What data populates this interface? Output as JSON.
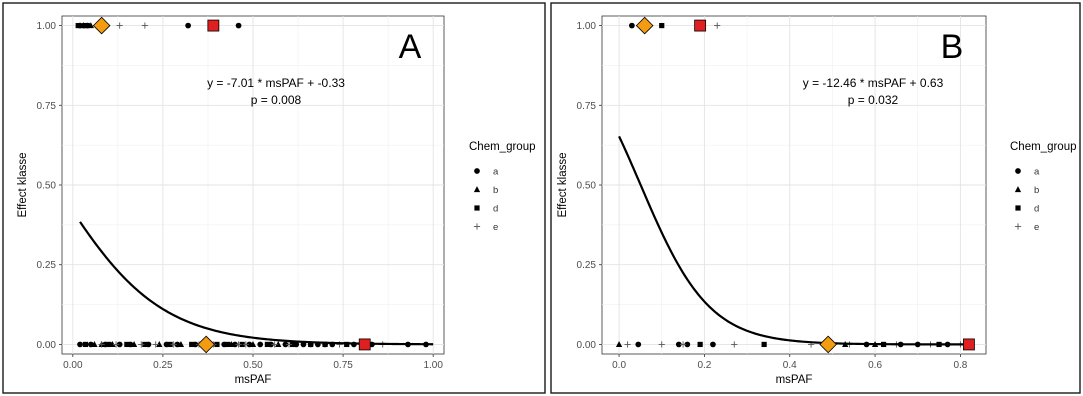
{
  "chart_data": [
    {
      "type": "scatter",
      "panel_label": "A",
      "xlabel": "msPAF",
      "ylabel": "Effect klasse",
      "xlim": [
        -0.03,
        1.03
      ],
      "ylim": [
        -0.03,
        1.03
      ],
      "x_ticks": [
        0.0,
        0.25,
        0.5,
        0.75,
        1.0
      ],
      "x_tick_labels": [
        "0.00",
        "0.25",
        "0.50",
        "0.75",
        "1.00"
      ],
      "y_ticks": [
        0.0,
        0.25,
        0.5,
        0.75,
        1.0
      ],
      "y_tick_labels": [
        "0.00",
        "0.25",
        "0.50",
        "0.75",
        "1.00"
      ],
      "grid": true,
      "equation": "y = -7.01 * msPAF + -0.33",
      "p_value": "p = 0.008",
      "legend": {
        "title": "Chem_group",
        "placement": "right",
        "entries": [
          {
            "label": "a",
            "shape": "circle"
          },
          {
            "label": "b",
            "shape": "triangle"
          },
          {
            "label": "d",
            "shape": "square"
          },
          {
            "label": "e",
            "shape": "plus"
          }
        ]
      },
      "fit_curve": {
        "type": "logistic",
        "intercept": -0.33,
        "slope": -7.01,
        "x_range": [
          0.02,
          1.0
        ]
      },
      "series": [
        {
          "name": "a",
          "shape": "circle",
          "points": [
            [
              0.02,
              1
            ],
            [
              0.03,
              1
            ],
            [
              0.04,
              1
            ],
            [
              0.32,
              1
            ],
            [
              0.46,
              1
            ],
            [
              0.02,
              0
            ],
            [
              0.05,
              0
            ],
            [
              0.09,
              0
            ],
            [
              0.13,
              0
            ],
            [
              0.16,
              0
            ],
            [
              0.21,
              0
            ],
            [
              0.26,
              0
            ],
            [
              0.29,
              0
            ],
            [
              0.34,
              0
            ],
            [
              0.42,
              0
            ],
            [
              0.45,
              0
            ],
            [
              0.49,
              0
            ],
            [
              0.52,
              0
            ],
            [
              0.55,
              0
            ],
            [
              0.59,
              0
            ],
            [
              0.62,
              0
            ],
            [
              0.64,
              0
            ],
            [
              0.66,
              0
            ],
            [
              0.68,
              0
            ],
            [
              0.7,
              0
            ],
            [
              0.72,
              0
            ],
            [
              0.78,
              0
            ],
            [
              0.83,
              0
            ],
            [
              0.93,
              0
            ],
            [
              0.98,
              0
            ]
          ]
        },
        {
          "name": "b",
          "shape": "triangle",
          "points": [
            [
              0.03,
              1
            ],
            [
              0.05,
              1
            ],
            [
              0.06,
              0
            ],
            [
              0.08,
              0
            ],
            [
              0.11,
              0
            ],
            [
              0.17,
              0
            ],
            [
              0.24,
              0
            ],
            [
              0.3,
              0
            ],
            [
              0.37,
              0
            ],
            [
              0.44,
              0
            ],
            [
              0.5,
              0
            ],
            [
              0.57,
              0
            ]
          ]
        },
        {
          "name": "d",
          "shape": "square",
          "points": [
            [
              0.015,
              1
            ],
            [
              0.04,
              1
            ],
            [
              0.035,
              0
            ],
            [
              0.1,
              0
            ],
            [
              0.15,
              0
            ],
            [
              0.2,
              0
            ],
            [
              0.27,
              0
            ],
            [
              0.33,
              0
            ],
            [
              0.4,
              0
            ],
            [
              0.43,
              0
            ],
            [
              0.47,
              0
            ],
            [
              0.54,
              0
            ],
            [
              0.61,
              0
            ],
            [
              0.66,
              0
            ],
            [
              0.7,
              0
            ],
            [
              0.76,
              0
            ]
          ]
        },
        {
          "name": "e",
          "shape": "plus",
          "points": [
            [
              0.13,
              1
            ],
            [
              0.2,
              1
            ],
            [
              0.08,
              0
            ],
            [
              0.12,
              0
            ],
            [
              0.19,
              0
            ],
            [
              0.23,
              0
            ],
            [
              0.28,
              0
            ],
            [
              0.35,
              0
            ],
            [
              0.39,
              0
            ],
            [
              0.46,
              0
            ],
            [
              0.48,
              0
            ],
            [
              0.56,
              0
            ],
            [
              0.6,
              0
            ],
            [
              0.74,
              0
            ],
            [
              0.8,
              0
            ],
            [
              0.86,
              0
            ]
          ]
        }
      ],
      "mean_markers": [
        {
          "shape": "diamond",
          "color": "#F39C12",
          "x": 0.08,
          "y": 1
        },
        {
          "shape": "square",
          "color": "#E02020",
          "x": 0.39,
          "y": 1
        },
        {
          "shape": "diamond",
          "color": "#F39C12",
          "x": 0.37,
          "y": 0
        },
        {
          "shape": "square",
          "color": "#E02020",
          "x": 0.81,
          "y": 0
        }
      ]
    },
    {
      "type": "scatter",
      "panel_label": "B",
      "xlabel": "msPAF",
      "ylabel": "Effect klasse",
      "xlim": [
        -0.04,
        0.86
      ],
      "ylim": [
        -0.03,
        1.03
      ],
      "x_ticks": [
        0.0,
        0.2,
        0.4,
        0.6,
        0.8
      ],
      "x_tick_labels": [
        "0.0",
        "0.2",
        "0.4",
        "0.6",
        "0.8"
      ],
      "y_ticks": [
        0.0,
        0.25,
        0.5,
        0.75,
        1.0
      ],
      "y_tick_labels": [
        "0.00",
        "0.25",
        "0.50",
        "0.75",
        "1.00"
      ],
      "grid": true,
      "equation": "y = -12.46 * msPAF + 0.63",
      "p_value": "p = 0.032",
      "legend": {
        "title": "Chem_group",
        "placement": "right",
        "entries": [
          {
            "label": "a",
            "shape": "circle"
          },
          {
            "label": "b",
            "shape": "triangle"
          },
          {
            "label": "d",
            "shape": "square"
          },
          {
            "label": "e",
            "shape": "plus"
          }
        ]
      },
      "fit_curve": {
        "type": "logistic",
        "intercept": 0.63,
        "slope": -12.46,
        "x_range": [
          0.0,
          0.83
        ]
      },
      "series": [
        {
          "name": "a",
          "shape": "circle",
          "points": [
            [
              0.03,
              1
            ],
            [
              0.05,
              1
            ],
            [
              0.045,
              0
            ],
            [
              0.14,
              0
            ],
            [
              0.16,
              0
            ],
            [
              0.22,
              0
            ],
            [
              0.5,
              0
            ],
            [
              0.58,
              0
            ],
            [
              0.66,
              0
            ],
            [
              0.7,
              0
            ],
            [
              0.77,
              0
            ]
          ]
        },
        {
          "name": "b",
          "shape": "triangle",
          "points": [
            [
              0.0,
              0
            ],
            [
              0.53,
              0
            ],
            [
              0.6,
              0
            ]
          ]
        },
        {
          "name": "d",
          "shape": "square",
          "points": [
            [
              0.1,
              1
            ],
            [
              0.19,
              0
            ],
            [
              0.34,
              0
            ],
            [
              0.62,
              0
            ],
            [
              0.75,
              0
            ]
          ]
        },
        {
          "name": "e",
          "shape": "plus",
          "points": [
            [
              0.23,
              1
            ],
            [
              0.02,
              0
            ],
            [
              0.1,
              0
            ],
            [
              0.15,
              0
            ],
            [
              0.27,
              0
            ],
            [
              0.45,
              0
            ],
            [
              0.54,
              0
            ],
            [
              0.65,
              0
            ],
            [
              0.73,
              0
            ],
            [
              0.8,
              0
            ]
          ]
        }
      ],
      "mean_markers": [
        {
          "shape": "diamond",
          "color": "#F39C12",
          "x": 0.06,
          "y": 1
        },
        {
          "shape": "square",
          "color": "#E02020",
          "x": 0.19,
          "y": 1
        },
        {
          "shape": "diamond",
          "color": "#F39C12",
          "x": 0.49,
          "y": 0
        },
        {
          "shape": "square",
          "color": "#E02020",
          "x": 0.82,
          "y": 0
        }
      ]
    }
  ]
}
